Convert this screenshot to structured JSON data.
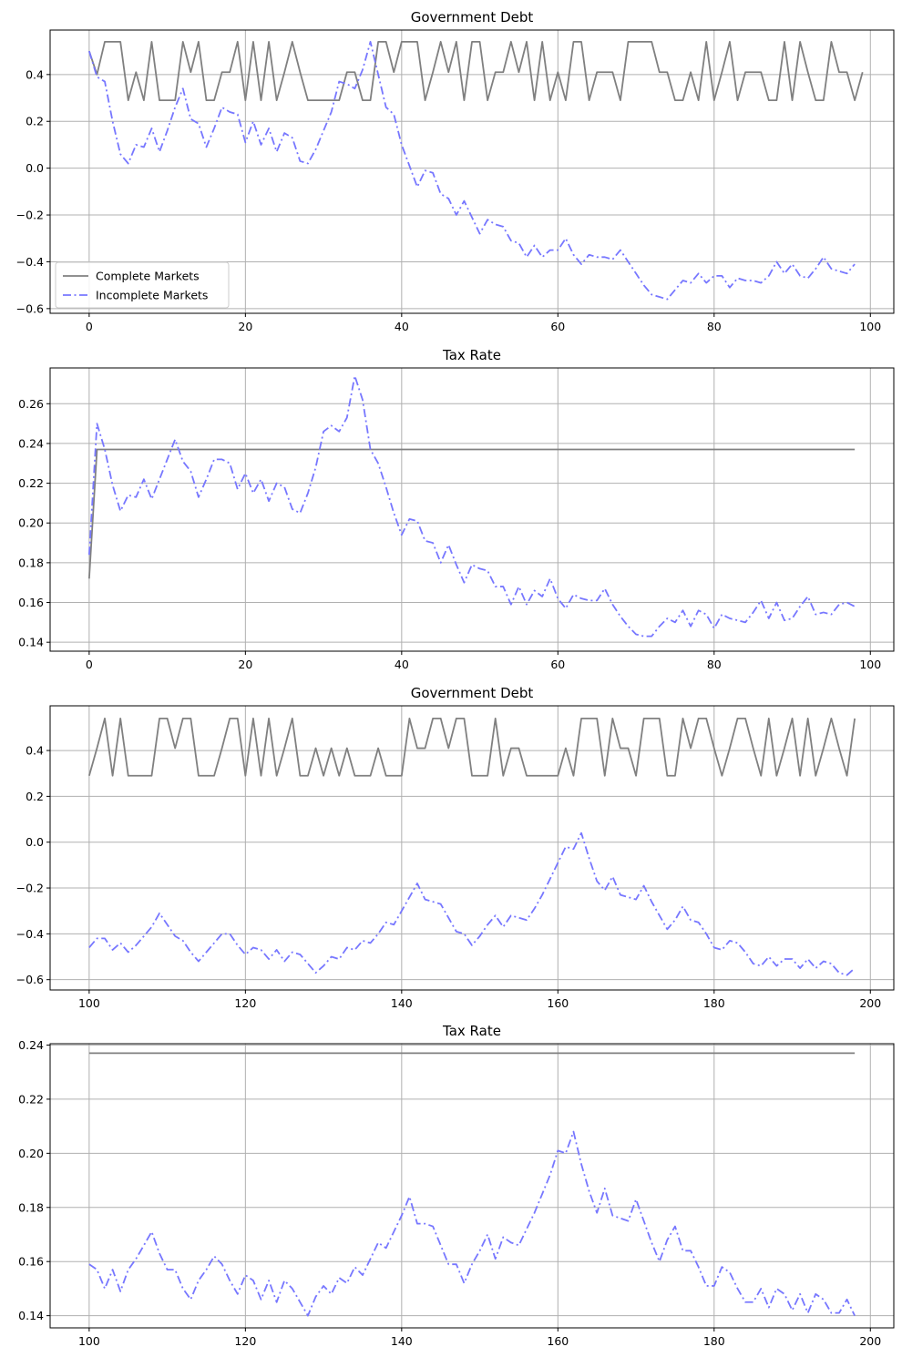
{
  "colors": {
    "complete": "#808080",
    "incomplete": "#7777ff",
    "grid": "#b0b0b0",
    "axis": "#000000"
  },
  "legend": {
    "location": "lower-left",
    "entries": [
      "Complete Markets",
      "Incomplete Markets"
    ]
  },
  "chart_data": [
    {
      "type": "line",
      "title": "Government Debt",
      "xlabel": "",
      "ylabel": "",
      "xlim": [
        -5,
        103
      ],
      "ylim": [
        -0.62,
        0.59
      ],
      "xticks": [
        0,
        20,
        40,
        60,
        80,
        100
      ],
      "yticks": [
        -0.6,
        -0.4,
        -0.2,
        0.0,
        0.2,
        0.4
      ],
      "xtick_labels": [
        "0",
        "20",
        "40",
        "60",
        "80",
        "100"
      ],
      "ytick_labels": [
        "−0.6",
        "−0.4",
        "−0.2",
        "0.0",
        "0.2",
        "0.4"
      ],
      "grid": true,
      "legend": true,
      "x_start": 0,
      "series": [
        {
          "name": "Complete Markets",
          "style": "solid",
          "values": [
            0.5,
            0.4,
            0.54,
            0.54,
            0.54,
            0.29,
            0.41,
            0.29,
            0.54,
            0.29,
            0.29,
            0.29,
            0.54,
            0.41,
            0.54,
            0.29,
            0.29,
            0.41,
            0.41,
            0.54,
            0.29,
            0.54,
            0.29,
            0.54,
            0.29,
            0.41,
            0.54,
            0.41,
            0.29,
            0.29,
            0.29,
            0.29,
            0.29,
            0.41,
            0.41,
            0.29,
            0.29,
            0.54,
            0.54,
            0.41,
            0.54,
            0.54,
            0.54,
            0.29,
            0.41,
            0.54,
            0.41,
            0.54,
            0.29,
            0.54,
            0.54,
            0.29,
            0.41,
            0.41,
            0.54,
            0.41,
            0.54,
            0.29,
            0.54,
            0.29,
            0.41,
            0.29,
            0.54,
            0.54,
            0.29,
            0.41,
            0.41,
            0.41,
            0.29,
            0.54,
            0.54,
            0.54,
            0.54,
            0.41,
            0.41,
            0.29,
            0.29,
            0.41,
            0.29,
            0.54,
            0.29,
            0.41,
            0.54,
            0.29,
            0.41,
            0.41,
            0.41,
            0.29,
            0.29,
            0.54,
            0.29,
            0.54,
            0.41,
            0.29,
            0.29,
            0.54,
            0.41,
            0.41,
            0.29,
            0.41
          ]
        },
        {
          "name": "Incomplete Markets",
          "style": "dashdot",
          "values": [
            0.5,
            0.39,
            0.37,
            0.2,
            0.06,
            0.02,
            0.1,
            0.09,
            0.17,
            0.07,
            0.16,
            0.26,
            0.34,
            0.21,
            0.19,
            0.09,
            0.17,
            0.26,
            0.24,
            0.23,
            0.11,
            0.2,
            0.1,
            0.17,
            0.07,
            0.15,
            0.13,
            0.03,
            0.02,
            0.08,
            0.16,
            0.24,
            0.37,
            0.36,
            0.34,
            0.42,
            0.54,
            0.4,
            0.26,
            0.23,
            0.1,
            0.01,
            -0.08,
            -0.01,
            -0.02,
            -0.11,
            -0.13,
            -0.2,
            -0.14,
            -0.21,
            -0.28,
            -0.22,
            -0.24,
            -0.25,
            -0.31,
            -0.32,
            -0.38,
            -0.33,
            -0.38,
            -0.35,
            -0.35,
            -0.3,
            -0.37,
            -0.41,
            -0.37,
            -0.38,
            -0.38,
            -0.39,
            -0.35,
            -0.4,
            -0.45,
            -0.5,
            -0.54,
            -0.55,
            -0.56,
            -0.52,
            -0.48,
            -0.49,
            -0.45,
            -0.49,
            -0.46,
            -0.46,
            -0.51,
            -0.47,
            -0.48,
            -0.48,
            -0.49,
            -0.46,
            -0.4,
            -0.45,
            -0.41,
            -0.46,
            -0.47,
            -0.43,
            -0.38,
            -0.43,
            -0.44,
            -0.45,
            -0.41
          ]
        }
      ]
    },
    {
      "type": "line",
      "title": "Tax Rate",
      "xlabel": "",
      "ylabel": "",
      "xlim": [
        -5,
        103
      ],
      "ylim": [
        0.1355,
        0.278
      ],
      "xticks": [
        0,
        20,
        40,
        60,
        80,
        100
      ],
      "yticks": [
        0.14,
        0.16,
        0.18,
        0.2,
        0.22,
        0.24,
        0.26
      ],
      "xtick_labels": [
        "0",
        "20",
        "40",
        "60",
        "80",
        "100"
      ],
      "ytick_labels": [
        "0.14",
        "0.16",
        "0.18",
        "0.20",
        "0.22",
        "0.24",
        "0.26"
      ],
      "grid": true,
      "legend": false,
      "x_start": 0,
      "series": [
        {
          "name": "Complete Markets",
          "style": "solid",
          "values": [
            0.172,
            0.237,
            0.237,
            0.237,
            0.237,
            0.237,
            0.237,
            0.237,
            0.237,
            0.237,
            0.237,
            0.237,
            0.237,
            0.237,
            0.237,
            0.237,
            0.237,
            0.237,
            0.237,
            0.237,
            0.237,
            0.237,
            0.237,
            0.237,
            0.237,
            0.237,
            0.237,
            0.237,
            0.237,
            0.237,
            0.237,
            0.237,
            0.237,
            0.237,
            0.237,
            0.237,
            0.237,
            0.237,
            0.237,
            0.237,
            0.237,
            0.237,
            0.237,
            0.237,
            0.237,
            0.237,
            0.237,
            0.237,
            0.237,
            0.237,
            0.237,
            0.237,
            0.237,
            0.237,
            0.237,
            0.237,
            0.237,
            0.237,
            0.237,
            0.237,
            0.237,
            0.237,
            0.237,
            0.237,
            0.237,
            0.237,
            0.237,
            0.237,
            0.237,
            0.237,
            0.237,
            0.237,
            0.237,
            0.237,
            0.237,
            0.237,
            0.237,
            0.237,
            0.237,
            0.237,
            0.237,
            0.237,
            0.237,
            0.237,
            0.237,
            0.237,
            0.237,
            0.237,
            0.237,
            0.237,
            0.237,
            0.237,
            0.237,
            0.237,
            0.237,
            0.237,
            0.237,
            0.237,
            0.237
          ]
        },
        {
          "name": "Incomplete Markets",
          "style": "dashdot",
          "values": [
            0.184,
            0.25,
            0.237,
            0.219,
            0.206,
            0.214,
            0.213,
            0.222,
            0.212,
            0.222,
            0.232,
            0.242,
            0.231,
            0.226,
            0.213,
            0.222,
            0.232,
            0.232,
            0.23,
            0.217,
            0.225,
            0.215,
            0.222,
            0.211,
            0.22,
            0.218,
            0.207,
            0.205,
            0.215,
            0.228,
            0.246,
            0.249,
            0.246,
            0.253,
            0.274,
            0.262,
            0.237,
            0.23,
            0.218,
            0.205,
            0.194,
            0.202,
            0.201,
            0.191,
            0.19,
            0.18,
            0.189,
            0.179,
            0.17,
            0.179,
            0.177,
            0.176,
            0.168,
            0.168,
            0.159,
            0.168,
            0.159,
            0.166,
            0.163,
            0.172,
            0.162,
            0.157,
            0.164,
            0.162,
            0.161,
            0.161,
            0.167,
            0.159,
            0.153,
            0.148,
            0.144,
            0.143,
            0.143,
            0.148,
            0.152,
            0.15,
            0.156,
            0.148,
            0.156,
            0.154,
            0.147,
            0.154,
            0.152,
            0.151,
            0.15,
            0.155,
            0.161,
            0.152,
            0.16,
            0.151,
            0.152,
            0.158,
            0.163,
            0.154,
            0.155,
            0.154,
            0.159,
            0.16,
            0.158
          ]
        }
      ]
    },
    {
      "type": "line",
      "title": "Government Debt",
      "xlabel": "",
      "ylabel": "",
      "xlim": [
        95,
        203
      ],
      "ylim": [
        -0.645,
        0.595
      ],
      "xticks": [
        100,
        120,
        140,
        160,
        180,
        200
      ],
      "yticks": [
        -0.6,
        -0.4,
        -0.2,
        0.0,
        0.2,
        0.4
      ],
      "xtick_labels": [
        "100",
        "120",
        "140",
        "160",
        "180",
        "200"
      ],
      "ytick_labels": [
        "−0.6",
        "−0.4",
        "−0.2",
        "0.0",
        "0.2",
        "0.4"
      ],
      "grid": true,
      "legend": false,
      "x_start": 100,
      "series": [
        {
          "name": "Complete Markets",
          "style": "solid",
          "values": [
            0.29,
            0.41,
            0.54,
            0.29,
            0.54,
            0.29,
            0.29,
            0.29,
            0.29,
            0.54,
            0.54,
            0.41,
            0.54,
            0.54,
            0.29,
            0.29,
            0.29,
            0.41,
            0.54,
            0.54,
            0.29,
            0.54,
            0.29,
            0.54,
            0.29,
            0.41,
            0.54,
            0.29,
            0.29,
            0.41,
            0.29,
            0.41,
            0.29,
            0.41,
            0.29,
            0.29,
            0.29,
            0.41,
            0.29,
            0.29,
            0.29,
            0.54,
            0.41,
            0.41,
            0.54,
            0.54,
            0.41,
            0.54,
            0.54,
            0.29,
            0.29,
            0.29,
            0.54,
            0.29,
            0.41,
            0.41,
            0.29,
            0.29,
            0.29,
            0.29,
            0.29,
            0.41,
            0.29,
            0.54,
            0.54,
            0.54,
            0.29,
            0.54,
            0.41,
            0.41,
            0.29,
            0.54,
            0.54,
            0.54,
            0.29,
            0.29,
            0.54,
            0.41,
            0.54,
            0.54,
            0.41,
            0.29,
            0.41,
            0.54,
            0.54,
            0.41,
            0.29,
            0.54,
            0.29,
            0.41,
            0.54,
            0.29,
            0.54,
            0.29,
            0.41,
            0.54,
            0.41,
            0.29,
            0.54
          ]
        },
        {
          "name": "Incomplete Markets",
          "style": "dashdot",
          "values": [
            -0.46,
            -0.42,
            -0.42,
            -0.47,
            -0.44,
            -0.48,
            -0.45,
            -0.41,
            -0.37,
            -0.31,
            -0.36,
            -0.41,
            -0.43,
            -0.48,
            -0.52,
            -0.48,
            -0.44,
            -0.4,
            -0.4,
            -0.45,
            -0.49,
            -0.46,
            -0.47,
            -0.51,
            -0.47,
            -0.52,
            -0.48,
            -0.49,
            -0.53,
            -0.57,
            -0.54,
            -0.5,
            -0.51,
            -0.46,
            -0.47,
            -0.43,
            -0.44,
            -0.4,
            -0.35,
            -0.36,
            -0.3,
            -0.24,
            -0.18,
            -0.25,
            -0.26,
            -0.27,
            -0.33,
            -0.39,
            -0.4,
            -0.45,
            -0.41,
            -0.36,
            -0.32,
            -0.37,
            -0.32,
            -0.33,
            -0.34,
            -0.29,
            -0.23,
            -0.16,
            -0.09,
            -0.02,
            -0.03,
            0.04,
            -0.07,
            -0.17,
            -0.21,
            -0.15,
            -0.23,
            -0.24,
            -0.25,
            -0.19,
            -0.26,
            -0.32,
            -0.38,
            -0.34,
            -0.28,
            -0.34,
            -0.35,
            -0.4,
            -0.46,
            -0.47,
            -0.43,
            -0.44,
            -0.48,
            -0.53,
            -0.54,
            -0.5,
            -0.54,
            -0.51,
            -0.51,
            -0.55,
            -0.51,
            -0.55,
            -0.52,
            -0.53,
            -0.57,
            -0.58,
            -0.55
          ]
        }
      ]
    },
    {
      "type": "line",
      "title": "Tax Rate",
      "xlabel": "",
      "ylabel": "",
      "xlim": [
        95,
        203
      ],
      "ylim": [
        0.1355,
        0.2405
      ],
      "xticks": [
        100,
        120,
        140,
        160,
        180,
        200
      ],
      "yticks": [
        0.14,
        0.16,
        0.18,
        0.2,
        0.22,
        0.24
      ],
      "xtick_labels": [
        "100",
        "120",
        "140",
        "160",
        "180",
        "200"
      ],
      "ytick_labels": [
        "0.14",
        "0.16",
        "0.18",
        "0.20",
        "0.22",
        "0.24"
      ],
      "grid": true,
      "legend": false,
      "x_start": 100,
      "series": [
        {
          "name": "Complete Markets",
          "style": "solid",
          "values": [
            0.237,
            0.237,
            0.237,
            0.237,
            0.237,
            0.237,
            0.237,
            0.237,
            0.237,
            0.237,
            0.237,
            0.237,
            0.237,
            0.237,
            0.237,
            0.237,
            0.237,
            0.237,
            0.237,
            0.237,
            0.237,
            0.237,
            0.237,
            0.237,
            0.237,
            0.237,
            0.237,
            0.237,
            0.237,
            0.237,
            0.237,
            0.237,
            0.237,
            0.237,
            0.237,
            0.237,
            0.237,
            0.237,
            0.237,
            0.237,
            0.237,
            0.237,
            0.237,
            0.237,
            0.237,
            0.237,
            0.237,
            0.237,
            0.237,
            0.237,
            0.237,
            0.237,
            0.237,
            0.237,
            0.237,
            0.237,
            0.237,
            0.237,
            0.237,
            0.237,
            0.237,
            0.237,
            0.237,
            0.237,
            0.237,
            0.237,
            0.237,
            0.237,
            0.237,
            0.237,
            0.237,
            0.237,
            0.237,
            0.237,
            0.237,
            0.237,
            0.237,
            0.237,
            0.237,
            0.237,
            0.237,
            0.237,
            0.237,
            0.237,
            0.237,
            0.237,
            0.237,
            0.237,
            0.237,
            0.237,
            0.237,
            0.237,
            0.237,
            0.237,
            0.237,
            0.237,
            0.237,
            0.237,
            0.237
          ]
        },
        {
          "name": "Incomplete Markets",
          "style": "dashdot",
          "values": [
            0.159,
            0.157,
            0.15,
            0.157,
            0.149,
            0.157,
            0.161,
            0.166,
            0.171,
            0.163,
            0.157,
            0.157,
            0.15,
            0.146,
            0.153,
            0.157,
            0.162,
            0.159,
            0.153,
            0.148,
            0.155,
            0.153,
            0.146,
            0.153,
            0.145,
            0.153,
            0.15,
            0.145,
            0.14,
            0.147,
            0.151,
            0.148,
            0.154,
            0.152,
            0.158,
            0.155,
            0.161,
            0.167,
            0.165,
            0.171,
            0.177,
            0.184,
            0.174,
            0.174,
            0.173,
            0.166,
            0.159,
            0.159,
            0.152,
            0.159,
            0.164,
            0.17,
            0.161,
            0.169,
            0.167,
            0.166,
            0.172,
            0.178,
            0.185,
            0.192,
            0.201,
            0.2,
            0.208,
            0.196,
            0.186,
            0.178,
            0.187,
            0.177,
            0.176,
            0.175,
            0.183,
            0.175,
            0.167,
            0.16,
            0.168,
            0.173,
            0.164,
            0.164,
            0.158,
            0.151,
            0.151,
            0.158,
            0.156,
            0.15,
            0.145,
            0.145,
            0.15,
            0.143,
            0.15,
            0.148,
            0.142,
            0.148,
            0.141,
            0.148,
            0.146,
            0.141,
            0.141,
            0.146,
            0.14
          ]
        }
      ]
    }
  ]
}
